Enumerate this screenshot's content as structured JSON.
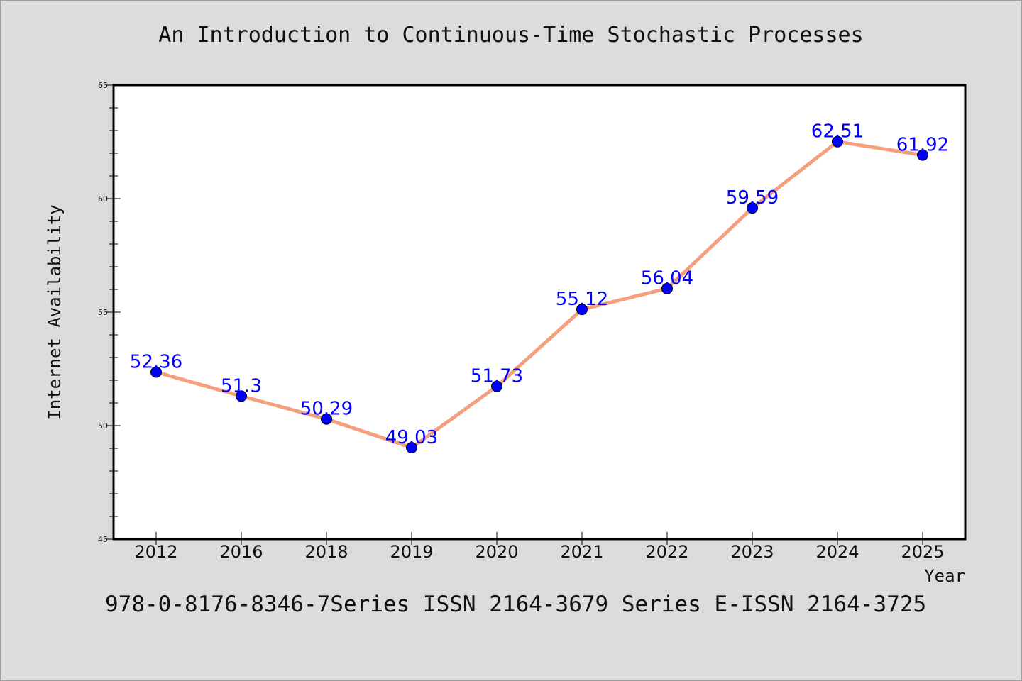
{
  "chart_data": {
    "type": "line",
    "title": "An Introduction to Continuous-Time Stochastic Processes",
    "footer": "978-0-8176-8346-7Series ISSN 2164-3679 Series E-ISSN 2164-3725",
    "xlabel": "Year",
    "ylabel": "Internet Availability",
    "categories": [
      "2012",
      "2016",
      "2018",
      "2019",
      "2020",
      "2021",
      "2022",
      "2023",
      "2024",
      "2025"
    ],
    "series": [
      {
        "values": [
          52.36,
          51.3,
          50.29,
          49.03,
          51.73,
          55.12,
          56.04,
          59.59,
          62.51,
          61.92
        ],
        "labels": [
          "52.36",
          "51.3",
          "50.29",
          "49.03",
          "51.73",
          "55.12",
          "56.04",
          "59.59",
          "62.51",
          "61.92"
        ],
        "line_color": "#f4a07e",
        "marker_color": "#0000ff"
      }
    ],
    "ylim": [
      45,
      65
    ],
    "yticks": [
      45,
      50,
      55,
      60,
      65
    ],
    "ytick_labels": [
      "45",
      "50",
      "55",
      "60",
      "65"
    ],
    "grid": false,
    "legend": "none"
  }
}
